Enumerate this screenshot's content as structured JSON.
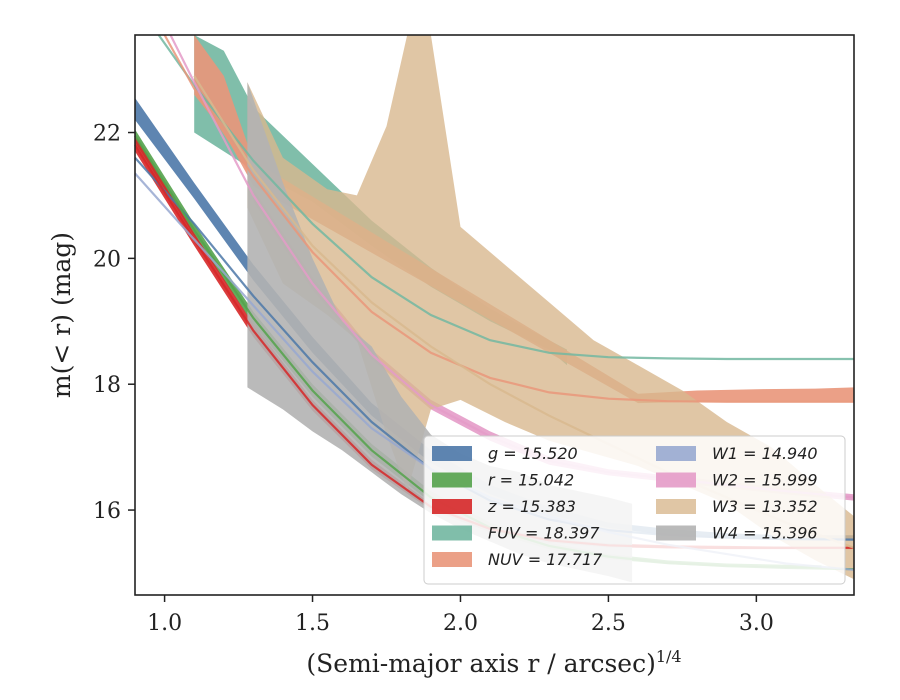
{
  "chart_data": {
    "type": "area",
    "xlabel": "(Semi-major axis r / arcsec)",
    "xlabel_superscript": "1/4",
    "ylabel": "m(< r) (mag)",
    "xlim": [
      0.9,
      3.33
    ],
    "ylim": [
      23.55,
      14.65
    ],
    "y_inverted": true,
    "x_ticks": [
      {
        "value": 1.0,
        "label": "1.0"
      },
      {
        "value": 1.5,
        "label": "1.5"
      },
      {
        "value": 2.0,
        "label": "2.0"
      },
      {
        "value": 2.5,
        "label": "2.5"
      },
      {
        "value": 3.0,
        "label": "3.0"
      }
    ],
    "y_ticks": [
      {
        "value": 16,
        "label": "16"
      },
      {
        "value": 18,
        "label": "18"
      },
      {
        "value": 20,
        "label": "20"
      },
      {
        "value": 22,
        "label": "22"
      }
    ],
    "grid": false,
    "legend_position": "lower-right",
    "series": [
      {
        "name": "g",
        "value": "15.520",
        "color": "#4c78a8",
        "band_x": [
          0.9,
          1.1,
          1.3,
          1.5,
          1.7,
          1.9,
          2.1,
          2.3,
          2.5,
          2.7,
          2.9,
          3.1,
          3.33
        ],
        "band_low": [
          22.55,
          21.2,
          19.9,
          18.75,
          17.7,
          16.95,
          16.4,
          16.05,
          15.8,
          15.7,
          15.63,
          15.6,
          15.6
        ],
        "band_high": [
          22.2,
          20.95,
          19.65,
          18.5,
          17.5,
          16.75,
          16.25,
          15.92,
          15.72,
          15.6,
          15.55,
          15.52,
          15.52
        ],
        "model": [
          [
            0.9,
            21.6
          ],
          [
            1.1,
            20.55
          ],
          [
            1.3,
            19.4
          ],
          [
            1.5,
            18.35
          ],
          [
            1.7,
            17.4
          ],
          [
            1.9,
            16.65
          ],
          [
            2.1,
            16.15
          ],
          [
            2.3,
            15.85
          ],
          [
            2.5,
            15.68
          ],
          [
            2.7,
            15.6
          ],
          [
            2.9,
            15.56
          ],
          [
            3.1,
            15.54
          ],
          [
            3.33,
            15.53
          ]
        ]
      },
      {
        "name": "r",
        "value": "15.042",
        "color": "#54a24b",
        "band_x": [
          0.9,
          1.1,
          1.3,
          1.5,
          1.7,
          1.9,
          2.1,
          2.3,
          2.5,
          2.7,
          2.9,
          3.1,
          3.22
        ],
        "band_low": [
          22.05,
          20.55,
          19.15,
          18.0,
          17.05,
          16.3,
          15.8,
          15.48,
          15.3,
          15.2,
          15.15,
          15.13,
          15.12
        ],
        "band_high": [
          21.85,
          20.35,
          18.95,
          17.8,
          16.85,
          16.12,
          15.65,
          15.38,
          15.22,
          15.14,
          15.1,
          15.08,
          15.08
        ],
        "model": [
          [
            0.9,
            21.95
          ],
          [
            1.1,
            20.45
          ],
          [
            1.3,
            19.05
          ],
          [
            1.5,
            17.9
          ],
          [
            1.7,
            16.95
          ],
          [
            1.9,
            16.2
          ],
          [
            2.1,
            15.72
          ],
          [
            2.3,
            15.43
          ],
          [
            2.5,
            15.26
          ],
          [
            2.7,
            15.16
          ],
          [
            2.9,
            15.11
          ],
          [
            3.1,
            15.08
          ],
          [
            3.33,
            15.06
          ]
        ]
      },
      {
        "name": "z",
        "value": "15.383",
        "color": "#d62728",
        "band_x": [
          0.9,
          1.1,
          1.3,
          1.5,
          1.7,
          1.9,
          2.1,
          2.3,
          2.5,
          2.7,
          2.9,
          3.1,
          3.33
        ],
        "band_low": [
          21.95,
          20.4,
          18.95,
          17.75,
          16.8,
          16.1,
          15.75,
          15.55,
          15.47,
          15.44,
          15.43,
          15.42,
          15.42
        ],
        "band_high": [
          21.7,
          20.2,
          18.75,
          17.58,
          16.65,
          16.0,
          15.65,
          15.48,
          15.41,
          15.39,
          15.38,
          15.38,
          15.38
        ],
        "model": [
          [
            0.9,
            21.8
          ],
          [
            1.1,
            20.3
          ],
          [
            1.3,
            18.85
          ],
          [
            1.5,
            17.67
          ],
          [
            1.7,
            16.72
          ],
          [
            1.9,
            16.05
          ],
          [
            2.1,
            15.7
          ],
          [
            2.3,
            15.52
          ],
          [
            2.5,
            15.44
          ],
          [
            2.7,
            15.41
          ],
          [
            2.9,
            15.4
          ],
          [
            3.1,
            15.4
          ],
          [
            3.33,
            15.4
          ]
        ]
      },
      {
        "name": "FUV",
        "value": "18.397",
        "color": "#72b7a1",
        "band_x": [
          1.1,
          1.2,
          1.3,
          1.5,
          1.7,
          1.9,
          2.1,
          2.3,
          2.36
        ],
        "band_low": [
          23.55,
          23.3,
          22.4,
          21.5,
          20.6,
          19.85,
          19.2,
          18.7,
          18.55
        ],
        "band_high": [
          22.0,
          21.7,
          21.4,
          20.9,
          20.2,
          19.55,
          19.0,
          18.55,
          18.3
        ],
        "model": [
          [
            0.98,
            23.55
          ],
          [
            1.1,
            22.75
          ],
          [
            1.3,
            21.55
          ],
          [
            1.5,
            20.55
          ],
          [
            1.7,
            19.7
          ],
          [
            1.9,
            19.1
          ],
          [
            2.1,
            18.7
          ],
          [
            2.3,
            18.5
          ],
          [
            2.5,
            18.43
          ],
          [
            2.7,
            18.41
          ],
          [
            2.9,
            18.4
          ],
          [
            3.1,
            18.4
          ],
          [
            3.33,
            18.4
          ]
        ]
      },
      {
        "name": "NUV",
        "value": "17.717",
        "color": "#e9967a",
        "band_x": [
          1.1,
          1.2,
          1.3,
          2.6,
          2.8,
          3.0,
          3.2,
          3.33
        ],
        "band_low": [
          23.55,
          22.9,
          21.55,
          17.85,
          17.9,
          17.92,
          17.93,
          17.95
        ],
        "band_high": [
          22.6,
          22.0,
          21.15,
          17.7,
          17.72,
          17.72,
          17.72,
          17.72
        ],
        "model": [
          [
            1.0,
            23.55
          ],
          [
            1.1,
            22.7
          ],
          [
            1.3,
            21.3
          ],
          [
            1.5,
            20.1
          ],
          [
            1.7,
            19.15
          ],
          [
            1.9,
            18.5
          ],
          [
            2.1,
            18.1
          ],
          [
            2.3,
            17.87
          ],
          [
            2.5,
            17.77
          ],
          [
            2.7,
            17.73
          ],
          [
            2.9,
            17.72
          ],
          [
            3.1,
            17.72
          ],
          [
            3.33,
            17.72
          ]
        ]
      },
      {
        "name": "W1",
        "value": "14.940",
        "color": "#98a8d0",
        "model": [
          [
            0.9,
            21.35
          ],
          [
            1.1,
            20.3
          ],
          [
            1.3,
            19.25
          ],
          [
            1.5,
            18.2
          ],
          [
            1.7,
            17.3
          ],
          [
            1.9,
            16.65
          ],
          [
            2.1,
            16.2
          ],
          [
            2.3,
            15.9
          ],
          [
            2.5,
            15.65
          ],
          [
            2.7,
            15.45
          ],
          [
            2.9,
            15.3
          ],
          [
            3.1,
            15.15
          ],
          [
            3.33,
            15.05
          ]
        ]
      },
      {
        "name": "W2",
        "value": "15.999",
        "color": "#e49bc8",
        "band_x": [
          1.3,
          1.5,
          1.7,
          1.9,
          2.1,
          2.3,
          2.5,
          2.7,
          2.9,
          3.1,
          3.33
        ],
        "band_low": [
          21.1,
          19.7,
          18.55,
          17.75,
          17.25,
          16.85,
          16.65,
          16.55,
          16.45,
          16.35,
          16.25
        ],
        "band_high": [
          20.9,
          19.5,
          18.4,
          17.6,
          17.1,
          16.72,
          16.55,
          16.45,
          16.35,
          16.25,
          16.15
        ],
        "model": [
          [
            1.02,
            23.55
          ],
          [
            1.1,
            22.8
          ],
          [
            1.3,
            21.0
          ],
          [
            1.5,
            19.6
          ],
          [
            1.7,
            18.47
          ],
          [
            1.9,
            17.67
          ],
          [
            2.1,
            17.17
          ],
          [
            2.3,
            16.78
          ],
          [
            2.5,
            16.6
          ],
          [
            2.7,
            16.5
          ],
          [
            2.9,
            16.4
          ],
          [
            3.1,
            16.3
          ],
          [
            3.33,
            16.2
          ]
        ]
      },
      {
        "name": "W3",
        "value": "13.352",
        "color": "#d8b88e",
        "band_x": [
          1.28,
          1.4,
          1.55,
          1.65,
          1.75,
          1.82,
          1.9,
          2.0,
          2.15,
          2.3,
          2.45,
          2.6,
          2.75,
          2.9,
          3.05,
          3.2,
          3.33
        ],
        "band_low": [
          22.8,
          21.6,
          21.1,
          21.0,
          22.1,
          23.55,
          23.55,
          20.5,
          19.9,
          19.3,
          18.7,
          18.3,
          17.9,
          17.4,
          17.0,
          16.4,
          15.9
        ],
        "band_high": [
          20.8,
          19.6,
          19.1,
          18.7,
          17.2,
          16.3,
          17.6,
          17.75,
          17.4,
          17.1,
          16.9,
          16.7,
          16.4,
          16.1,
          15.6,
          15.2,
          14.9
        ],
        "model": [
          [
            1.1,
            22.9
          ],
          [
            1.3,
            21.4
          ],
          [
            1.5,
            20.2
          ],
          [
            1.7,
            19.3
          ],
          [
            1.9,
            18.6
          ],
          [
            2.1,
            18.0
          ],
          [
            2.3,
            17.5
          ],
          [
            2.5,
            17.05
          ],
          [
            2.7,
            16.6
          ],
          [
            2.9,
            16.2
          ],
          [
            3.1,
            15.8
          ],
          [
            3.33,
            15.4
          ]
        ]
      },
      {
        "name": "W4",
        "value": "15.396",
        "color": "#b3b3b3",
        "band_x": [
          1.28,
          1.4,
          1.5,
          1.6,
          1.7,
          1.8,
          1.9,
          2.0,
          2.1,
          2.2,
          2.3,
          2.4,
          2.5,
          2.58
        ],
        "band_low": [
          22.8,
          21.2,
          20.0,
          19.0,
          18.6,
          17.8,
          17.2,
          16.9,
          16.7,
          16.6,
          16.4,
          16.3,
          16.2,
          16.1
        ],
        "band_high": [
          17.95,
          17.6,
          17.25,
          16.95,
          16.6,
          16.25,
          15.95,
          15.7,
          15.5,
          15.3,
          15.15,
          15.05,
          14.95,
          14.85
        ]
      }
    ]
  }
}
